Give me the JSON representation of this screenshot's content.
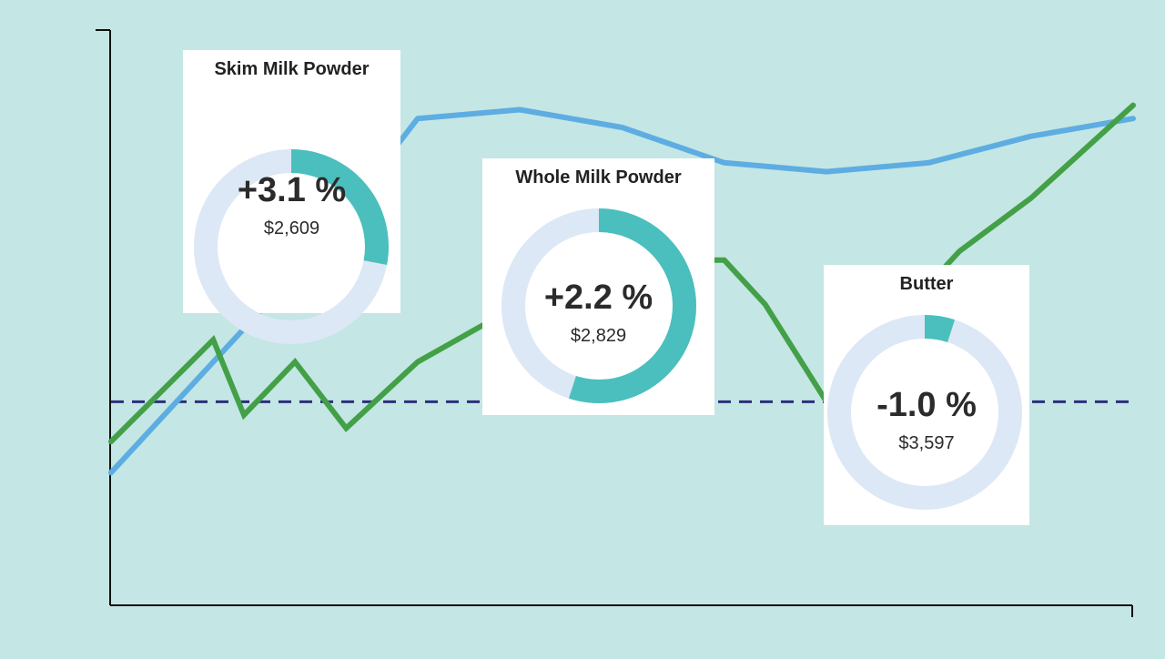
{
  "chart_data": {
    "type": "line",
    "series": [
      {
        "key": "blue",
        "color": "#5dade2",
        "values": [
          [
            0,
            0.0
          ],
          [
            1,
            0.25
          ],
          [
            2,
            0.5
          ],
          [
            3,
            0.8
          ],
          [
            4,
            0.82
          ],
          [
            5,
            0.78
          ],
          [
            6,
            0.7
          ],
          [
            7,
            0.68
          ],
          [
            8,
            0.7
          ],
          [
            9,
            0.76
          ],
          [
            10,
            0.8
          ]
        ]
      },
      {
        "key": "green",
        "color": "#43a047",
        "values": [
          [
            0,
            0.07
          ],
          [
            1,
            0.3
          ],
          [
            1.3,
            0.13
          ],
          [
            1.8,
            0.25
          ],
          [
            2.3,
            0.1
          ],
          [
            3,
            0.25
          ],
          [
            4,
            0.38
          ],
          [
            4.6,
            0.48
          ],
          [
            6,
            0.48
          ],
          [
            6.4,
            0.38
          ],
          [
            7,
            0.16
          ],
          [
            7.5,
            0.3
          ],
          [
            8.3,
            0.5
          ],
          [
            9,
            0.62
          ],
          [
            10,
            0.83
          ]
        ]
      }
    ],
    "baseline": {
      "value": 0.16,
      "color": "#2a2f7d",
      "style": "dashed"
    },
    "xlim": [
      0,
      10
    ],
    "ylim": [
      -0.3,
      1.0
    ],
    "grid": false
  },
  "cards": [
    {
      "id": "smp",
      "title": "Skim Milk Powder",
      "change": "+3.1 %",
      "price": "$2,609",
      "fraction": 0.28
    },
    {
      "id": "wmp",
      "title": "Whole Milk Powder",
      "change": "+2.2 %",
      "price": "$2,829",
      "fraction": 0.55
    },
    {
      "id": "butter",
      "title": "Butter",
      "change": "-1.0 %",
      "price": "$3,597",
      "fraction": 0.05
    }
  ],
  "colors": {
    "background": "#c4e6e4",
    "ring_track": "#dce8f5",
    "ring_fill": "#4bbfbd",
    "axis": "#111111"
  }
}
